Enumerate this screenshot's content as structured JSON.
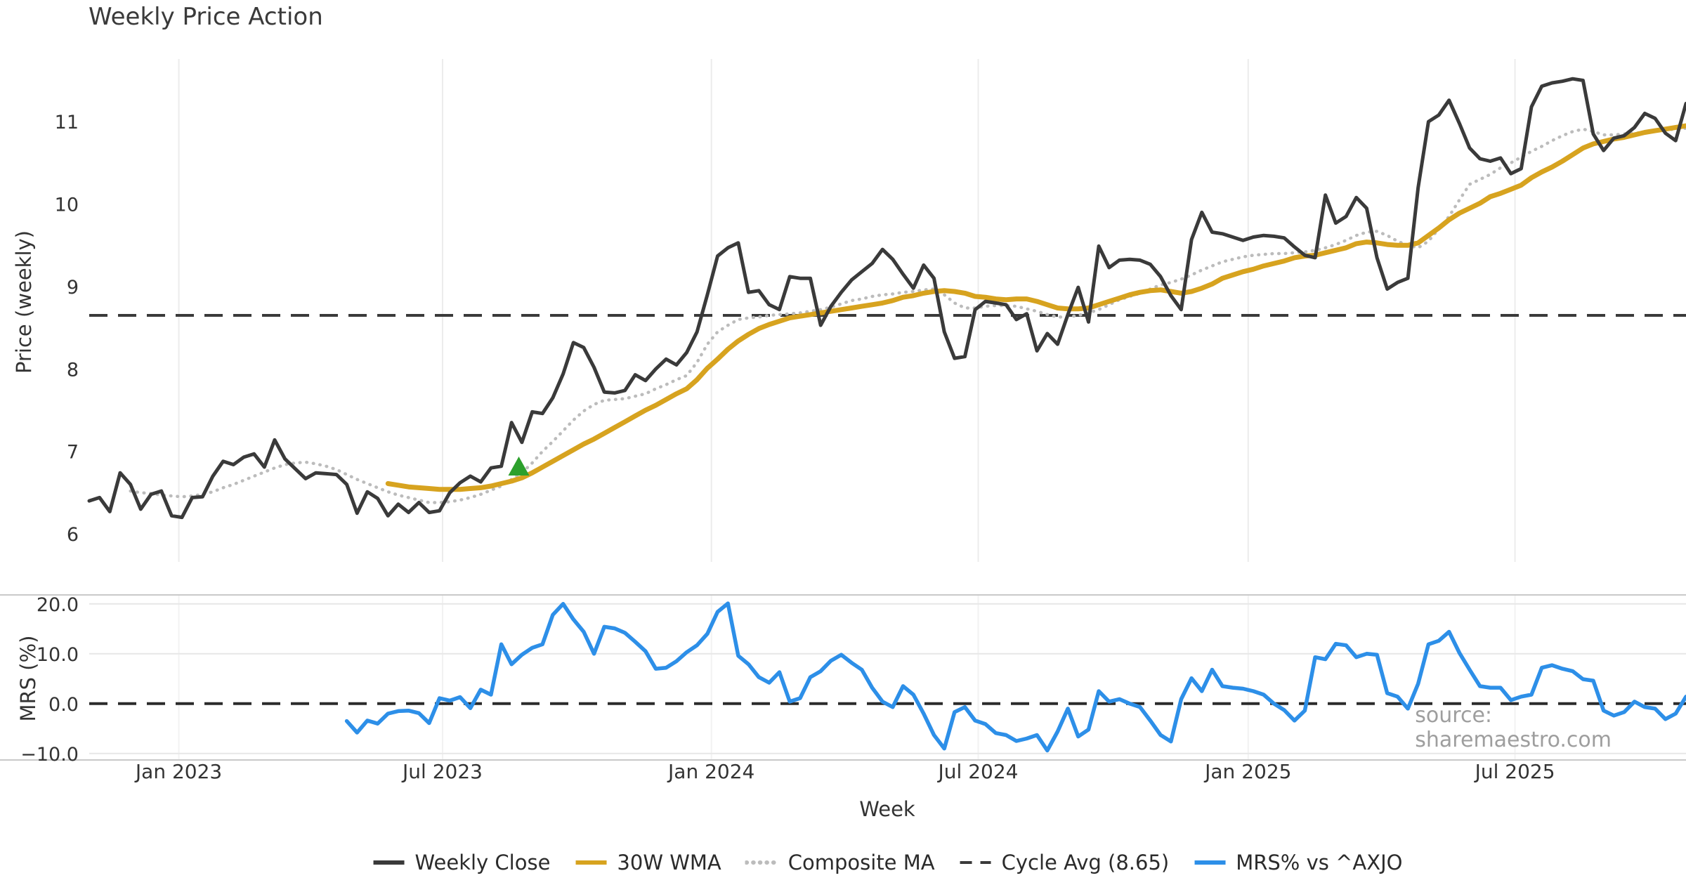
{
  "title": "Weekly Price Action",
  "price_axis": {
    "label": "Price (weekly)"
  },
  "mrs_axis": {
    "label": "MRS (%)"
  },
  "x_axis": {
    "label": "Week"
  },
  "source_note": "source: sharemaestro.com",
  "colors": {
    "weekly_close": "#3a3a3a",
    "wma": "#d7a31f",
    "composite": "#bcbcbc",
    "cycle_avg": "#3a3a3a",
    "mrs": "#2d8fe8",
    "signal_marker": "#2ca02c",
    "grid": "#ececec",
    "spine": "#c9c9c9",
    "tick_text": "#333333"
  },
  "legend": {
    "items": [
      {
        "label": "Weekly Close",
        "color": "#3a3a3a",
        "style": "solid"
      },
      {
        "label": "30W WMA",
        "color": "#d7a31f",
        "style": "solid"
      },
      {
        "label": "Composite MA",
        "color": "#bcbcbc",
        "style": "dotted"
      },
      {
        "label": "Cycle Avg (8.65)",
        "color": "#3a3a3a",
        "style": "dashed"
      },
      {
        "label": "MRS% vs ^AXJO",
        "color": "#2d8fe8",
        "style": "solid"
      }
    ]
  },
  "chart_data": {
    "type": "line",
    "x_unit": "weeks",
    "total_weeks": 155,
    "x_ticks": [
      {
        "label": "Jan 2023",
        "week": 8.7
      },
      {
        "label": "Jul 2023",
        "week": 34.3
      },
      {
        "label": "Jan 2024",
        "week": 60.4
      },
      {
        "label": "Jul 2024",
        "week": 86.3
      },
      {
        "label": "Jan 2025",
        "week": 112.5
      },
      {
        "label": "Jul 2025",
        "week": 138.4
      }
    ],
    "panels": [
      {
        "name": "price",
        "ylabel": "Price (weekly)",
        "ylim": [
          5.66,
          11.76
        ],
        "yticks": [
          {
            "v": 6,
            "label": "6"
          },
          {
            "v": 7,
            "label": "7"
          },
          {
            "v": 8,
            "label": "8"
          },
          {
            "v": 9,
            "label": "9"
          },
          {
            "v": 10,
            "label": "10"
          },
          {
            "v": 11,
            "label": "11"
          }
        ],
        "grid_horizontal": false,
        "reference_lines": [
          {
            "name": "Cycle Avg (8.65)",
            "value": 8.65,
            "color": "#3a3a3a",
            "style": "dashed",
            "lw": 4
          }
        ],
        "series": [
          {
            "name": "Composite MA",
            "color": "#bcbcbc",
            "style": "dotted",
            "lw": 4.5,
            "start_week": 4,
            "values": [
              6.52,
              6.5,
              6.49,
              6.47,
              6.46,
              6.45,
              6.46,
              6.48,
              6.51,
              6.56,
              6.6,
              6.65,
              6.7,
              6.75,
              6.8,
              6.84,
              6.86,
              6.87,
              6.85,
              6.82,
              6.78,
              6.72,
              6.66,
              6.61,
              6.56,
              6.51,
              6.47,
              6.44,
              6.41,
              6.38,
              6.38,
              6.39,
              6.41,
              6.44,
              6.48,
              6.53,
              6.58,
              6.66,
              6.74,
              6.86,
              7.0,
              7.12,
              7.25,
              7.38,
              7.49,
              7.57,
              7.62,
              7.63,
              7.64,
              7.67,
              7.7,
              7.76,
              7.81,
              7.87,
              7.92,
              8.08,
              8.3,
              8.45,
              8.53,
              8.6,
              8.62,
              8.63,
              8.65,
              8.66,
              8.67,
              8.68,
              8.7,
              8.72,
              8.75,
              8.79,
              8.83,
              8.85,
              8.88,
              8.9,
              8.91,
              8.93,
              8.94,
              8.96,
              8.97,
              8.9,
              8.8,
              8.74,
              8.74,
              8.76,
              8.77,
              8.77,
              8.76,
              8.73,
              8.7,
              8.66,
              8.63,
              8.63,
              8.65,
              8.68,
              8.72,
              8.78,
              8.84,
              8.88,
              8.92,
              8.97,
              9.02,
              9.05,
              9.09,
              9.14,
              9.2,
              9.25,
              9.3,
              9.33,
              9.36,
              9.38,
              9.39,
              9.4,
              9.4,
              9.41,
              9.42,
              9.44,
              9.47,
              9.51,
              9.56,
              9.62,
              9.66,
              9.67,
              9.62,
              9.55,
              9.5,
              9.47,
              9.55,
              9.7,
              9.85,
              10.05,
              10.24,
              10.3,
              10.36,
              10.44,
              10.5,
              10.57,
              10.64,
              10.7,
              10.77,
              10.83,
              10.88,
              10.91,
              10.88,
              10.84,
              10.84,
              10.85,
              10.86,
              10.87,
              10.89,
              10.9,
              10.91,
              10.92
            ]
          },
          {
            "name": "30W WMA",
            "color": "#d7a31f",
            "style": "solid",
            "lw": 7,
            "start_week": 29,
            "values": [
              6.61,
              6.59,
              6.57,
              6.56,
              6.55,
              6.54,
              6.54,
              6.54,
              6.55,
              6.56,
              6.58,
              6.61,
              6.64,
              6.68,
              6.74,
              6.81,
              6.88,
              6.95,
              7.02,
              7.09,
              7.15,
              7.22,
              7.29,
              7.36,
              7.43,
              7.5,
              7.56,
              7.63,
              7.7,
              7.76,
              7.87,
              8.01,
              8.12,
              8.24,
              8.34,
              8.42,
              8.49,
              8.54,
              8.58,
              8.62,
              8.64,
              8.66,
              8.68,
              8.7,
              8.72,
              8.74,
              8.76,
              8.78,
              8.8,
              8.83,
              8.87,
              8.89,
              8.92,
              8.94,
              8.95,
              8.94,
              8.92,
              8.88,
              8.87,
              8.85,
              8.84,
              8.85,
              8.85,
              8.82,
              8.78,
              8.74,
              8.73,
              8.73,
              8.74,
              8.78,
              8.82,
              8.86,
              8.9,
              8.93,
              8.95,
              8.96,
              8.94,
              8.92,
              8.94,
              8.98,
              9.03,
              9.1,
              9.14,
              9.18,
              9.21,
              9.25,
              9.28,
              9.31,
              9.35,
              9.37,
              9.38,
              9.41,
              9.44,
              9.47,
              9.52,
              9.54,
              9.53,
              9.51,
              9.5,
              9.5,
              9.53,
              9.62,
              9.71,
              9.81,
              9.89,
              9.95,
              10.01,
              10.09,
              10.13,
              10.18,
              10.23,
              10.32,
              10.39,
              10.45,
              10.52,
              10.6,
              10.68,
              10.73,
              10.76,
              10.79,
              10.81,
              10.84,
              10.87,
              10.89,
              10.91,
              10.93,
              10.95
            ]
          },
          {
            "name": "Weekly Close",
            "color": "#3a3a3a",
            "style": "solid",
            "lw": 5,
            "start_week": 0,
            "values": [
              6.4,
              6.44,
              6.27,
              6.74,
              6.6,
              6.3,
              6.48,
              6.52,
              6.22,
              6.2,
              6.44,
              6.45,
              6.7,
              6.88,
              6.84,
              6.93,
              6.97,
              6.81,
              7.14,
              6.91,
              6.79,
              6.67,
              6.74,
              6.73,
              6.72,
              6.6,
              6.25,
              6.51,
              6.43,
              6.22,
              6.36,
              6.26,
              6.38,
              6.26,
              6.28,
              6.5,
              6.62,
              6.7,
              6.63,
              6.8,
              6.82,
              7.35,
              7.11,
              7.48,
              7.46,
              7.65,
              7.94,
              8.32,
              8.26,
              8.02,
              7.72,
              7.71,
              7.74,
              7.93,
              7.86,
              8.0,
              8.12,
              8.05,
              8.2,
              8.45,
              8.9,
              9.37,
              9.47,
              9.53,
              8.93,
              8.95,
              8.78,
              8.72,
              9.12,
              9.1,
              9.1,
              8.53,
              8.76,
              8.93,
              9.08,
              9.18,
              9.28,
              9.45,
              9.33,
              9.15,
              8.98,
              9.26,
              9.1,
              8.45,
              8.13,
              8.15,
              8.72,
              8.82,
              8.8,
              8.78,
              8.6,
              8.67,
              8.22,
              8.43,
              8.3,
              8.66,
              8.99,
              8.57,
              9.49,
              9.23,
              9.32,
              9.33,
              9.32,
              9.27,
              9.12,
              8.89,
              8.72,
              9.57,
              9.9,
              9.66,
              9.64,
              9.6,
              9.56,
              9.6,
              9.62,
              9.61,
              9.59,
              9.48,
              9.38,
              9.35,
              10.11,
              9.77,
              9.85,
              10.08,
              9.95,
              9.35,
              8.97,
              9.05,
              9.1,
              10.2,
              11.0,
              11.08,
              11.26,
              10.98,
              10.68,
              10.55,
              10.52,
              10.56,
              10.37,
              10.43,
              11.18,
              11.43,
              11.47,
              11.49,
              11.52,
              11.5,
              10.85,
              10.65,
              10.8,
              10.83,
              10.93,
              11.1,
              11.04,
              10.86,
              10.77,
              11.22
            ]
          }
        ],
        "markers": [
          {
            "name": "buy-signal",
            "shape": "triangle-up",
            "color": "#2ca02c",
            "week": 41.7,
            "value": 6.81
          }
        ]
      },
      {
        "name": "mrs",
        "ylabel": "MRS (%)",
        "ylim": [
          -11.3,
          21.8
        ],
        "yticks": [
          {
            "v": 20,
            "label": "20.0"
          },
          {
            "v": 10,
            "label": "10.0"
          },
          {
            "v": 0,
            "label": "0.0"
          },
          {
            "v": -10,
            "label": "−10.0"
          }
        ],
        "grid_horizontal": true,
        "reference_lines": [
          {
            "name": "zero",
            "value": 0,
            "color": "#2b2b2b",
            "style": "dashed",
            "lw": 4
          }
        ],
        "series": [
          {
            "name": "MRS% vs ^AXJO",
            "color": "#2d8fe8",
            "style": "solid",
            "lw": 5.5,
            "start_week": 25,
            "values": [
              -3.5,
              -5.8,
              -3.4,
              -4.0,
              -2.0,
              -1.5,
              -1.4,
              -1.9,
              -3.9,
              1.1,
              0.6,
              1.3,
              -0.9,
              2.8,
              1.8,
              11.9,
              7.9,
              9.8,
              11.2,
              11.9,
              17.8,
              20.0,
              16.9,
              14.4,
              10.0,
              15.4,
              15.1,
              14.2,
              12.4,
              10.5,
              7.0,
              7.2,
              8.5,
              10.3,
              11.7,
              14.0,
              18.4,
              20.1,
              9.6,
              7.9,
              5.3,
              4.2,
              6.3,
              0.4,
              1.1,
              5.3,
              6.5,
              8.6,
              9.8,
              8.2,
              6.8,
              3.2,
              0.4,
              -0.7,
              3.5,
              1.8,
              -2.0,
              -6.3,
              -9.0,
              -1.7,
              -0.7,
              -3.4,
              -4.1,
              -5.9,
              -6.3,
              -7.5,
              -7.0,
              -6.3,
              -9.4,
              -5.6,
              -1.0,
              -6.6,
              -5.2,
              2.5,
              0.4,
              0.9,
              0.0,
              -0.7,
              -3.4,
              -6.3,
              -7.6,
              0.9,
              5.1,
              2.5,
              6.8,
              3.5,
              3.2,
              3.0,
              2.5,
              1.8,
              0.0,
              -1.3,
              -3.4,
              -1.4,
              9.3,
              8.9,
              12.0,
              11.7,
              9.3,
              10.0,
              9.8,
              2.1,
              1.4,
              -1.0,
              4.0,
              11.9,
              12.6,
              14.4,
              10.2,
              6.8,
              3.5,
              3.2,
              3.2,
              0.7,
              1.4,
              1.8,
              7.2,
              7.7,
              7.0,
              6.5,
              4.9,
              4.6,
              -1.4,
              -2.4,
              -1.7,
              0.4,
              -0.7,
              -1.0,
              -3.1,
              -2.0,
              1.4
            ]
          }
        ]
      }
    ]
  }
}
